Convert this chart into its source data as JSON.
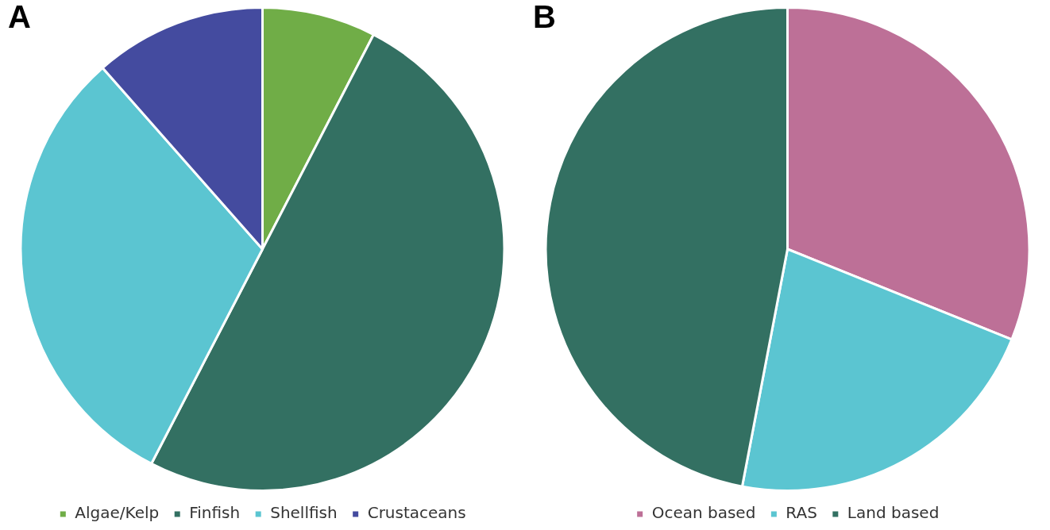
{
  "chart_data": [
    {
      "type": "pie",
      "title": "A",
      "categories": [
        "Algae/Kelp",
        "Finfish",
        "Shellfish",
        "Crustaceans"
      ],
      "values": [
        7.6,
        50,
        30.9,
        11.5
      ],
      "colors": [
        "#70ad47",
        "#337062",
        "#5bc5d1",
        "#444b9f"
      ],
      "legend": "bottom"
    },
    {
      "type": "pie",
      "title": "B",
      "categories": [
        "Ocean based",
        "RAS",
        "Land based"
      ],
      "values": [
        31.1,
        21.9,
        47.0
      ],
      "colors": [
        "#bd7097",
        "#5bc5d1",
        "#337062"
      ],
      "legend": "bottom"
    }
  ]
}
